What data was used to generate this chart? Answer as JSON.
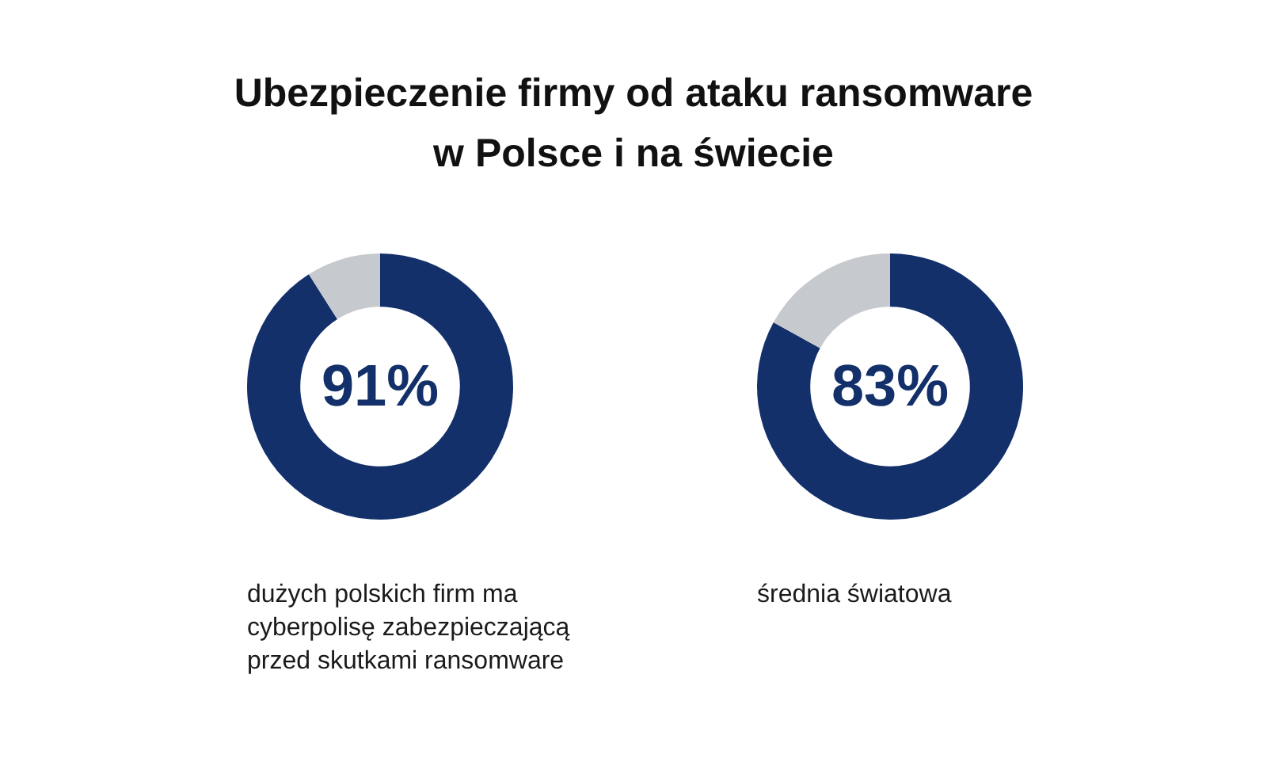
{
  "chart_data": [
    {
      "type": "donut",
      "title": "Ubezpieczenie firmy od ataku ransomware w Polsce i na świecie",
      "categories": [
        null,
        null
      ],
      "values": [
        91,
        9
      ],
      "colors": [
        "#13306a",
        "#c6c9ce"
      ],
      "value_labels": [
        "91%",
        null
      ],
      "annotations": [
        "dużych polskich firm ma cyberpolisę zabezpieczającą przed skutkami ransomware"
      ]
    },
    {
      "type": "donut",
      "categories": [
        null,
        null
      ],
      "values": [
        83,
        17
      ],
      "colors": [
        "#13306a",
        "#c6c9ce"
      ],
      "value_labels": [
        "83%",
        null
      ],
      "annotations": [
        "średnia światowa"
      ]
    }
  ]
}
